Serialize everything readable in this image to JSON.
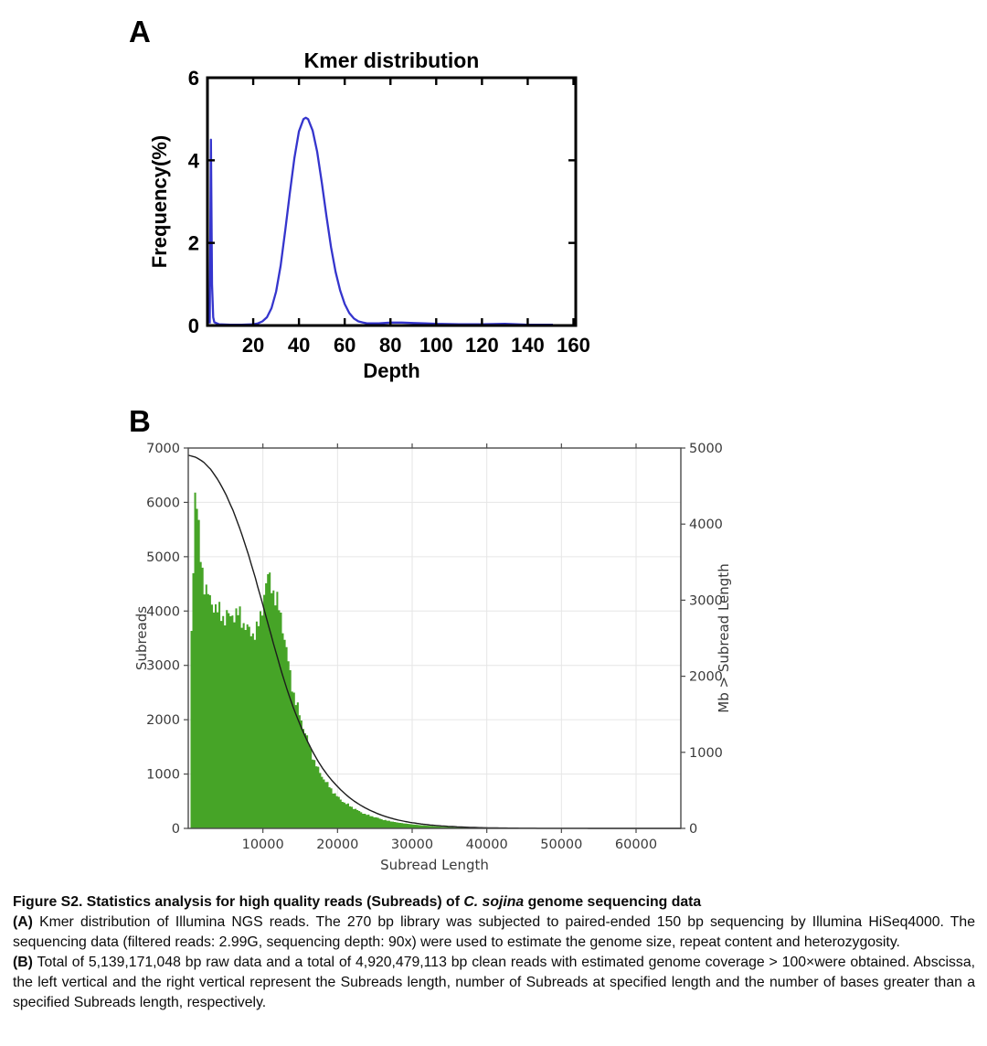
{
  "page": {
    "background": "#ffffff"
  },
  "panels": {
    "a_label": "A",
    "b_label": "B"
  },
  "chart_data": [
    {
      "id": "kmer",
      "type": "line",
      "panel": "A",
      "title": "Kmer distribution",
      "xlabel": "Depth",
      "ylabel": "Frequency(%)",
      "xlim": [
        0,
        161
      ],
      "ylim": [
        0,
        6
      ],
      "xticks": [
        20,
        40,
        60,
        80,
        100,
        120,
        140,
        160
      ],
      "yticks": [
        0,
        2,
        4,
        6
      ],
      "grid": false,
      "line_color": "#3535cd",
      "axis_color": "#000000",
      "points": [
        [
          1,
          0.05
        ],
        [
          1.5,
          4.5
        ],
        [
          2,
          1.0
        ],
        [
          2.5,
          0.2
        ],
        [
          3,
          0.08
        ],
        [
          5,
          0.03
        ],
        [
          10,
          0.02
        ],
        [
          15,
          0.02
        ],
        [
          20,
          0.03
        ],
        [
          22,
          0.05
        ],
        [
          24,
          0.1
        ],
        [
          26,
          0.2
        ],
        [
          28,
          0.42
        ],
        [
          30,
          0.82
        ],
        [
          32,
          1.45
        ],
        [
          34,
          2.3
        ],
        [
          36,
          3.2
        ],
        [
          38,
          4.05
        ],
        [
          40,
          4.7
        ],
        [
          42,
          5.0
        ],
        [
          43,
          5.03
        ],
        [
          44,
          5.0
        ],
        [
          46,
          4.72
        ],
        [
          48,
          4.2
        ],
        [
          50,
          3.45
        ],
        [
          52,
          2.65
        ],
        [
          54,
          1.9
        ],
        [
          56,
          1.3
        ],
        [
          58,
          0.85
        ],
        [
          60,
          0.52
        ],
        [
          62,
          0.3
        ],
        [
          64,
          0.17
        ],
        [
          66,
          0.1
        ],
        [
          68,
          0.07
        ],
        [
          70,
          0.05
        ],
        [
          75,
          0.05
        ],
        [
          80,
          0.07
        ],
        [
          85,
          0.07
        ],
        [
          90,
          0.06
        ],
        [
          95,
          0.05
        ],
        [
          100,
          0.04
        ],
        [
          110,
          0.03
        ],
        [
          120,
          0.03
        ],
        [
          130,
          0.04
        ],
        [
          140,
          0.02
        ],
        [
          150,
          0.02
        ],
        [
          151,
          0.02
        ]
      ]
    },
    {
      "id": "subreads",
      "type": "histogram+line",
      "panel": "B",
      "title": "",
      "xlabel": "Subread Length",
      "ylabel_left": "Subreads",
      "ylabel_right": "Mb > Subread Length",
      "xlim": [
        0,
        66000
      ],
      "ylim_left": [
        0,
        7000
      ],
      "ylim_right": [
        0,
        5000
      ],
      "xticks": [
        10000,
        20000,
        30000,
        40000,
        50000,
        60000
      ],
      "yticks_left": [
        0,
        1000,
        2000,
        3000,
        4000,
        5000,
        6000,
        7000
      ],
      "yticks_right": [
        0,
        1000,
        2000,
        3000,
        4000,
        5000
      ],
      "grid": true,
      "grid_color": "#e6e6e6",
      "bar_color": "#46a427",
      "line_color": "#1c1c1c",
      "axis_color": "#4a4a4a",
      "text_color": "#3a3a3a",
      "histogram": [
        [
          300,
          3350
        ],
        [
          500,
          3800
        ],
        [
          650,
          4600
        ],
        [
          800,
          5600
        ],
        [
          900,
          6100
        ],
        [
          1000,
          6320
        ],
        [
          1100,
          6050
        ],
        [
          1250,
          5800
        ],
        [
          1400,
          5500
        ],
        [
          1600,
          5200
        ],
        [
          1800,
          4950
        ],
        [
          2000,
          4750
        ],
        [
          2200,
          4550
        ],
        [
          2400,
          4400
        ],
        [
          2600,
          4300
        ],
        [
          2800,
          4220
        ],
        [
          3000,
          4150
        ],
        [
          3300,
          4080
        ],
        [
          3600,
          4020
        ],
        [
          4000,
          3960
        ],
        [
          4400,
          3990
        ],
        [
          4800,
          3920
        ],
        [
          5200,
          3960
        ],
        [
          5600,
          3900
        ],
        [
          6000,
          3930
        ],
        [
          6400,
          3870
        ],
        [
          6800,
          3900
        ],
        [
          7200,
          3830
        ],
        [
          7600,
          3780
        ],
        [
          8000,
          3700
        ],
        [
          8400,
          3640
        ],
        [
          8800,
          3600
        ],
        [
          9200,
          3620
        ],
        [
          9600,
          3750
        ],
        [
          10000,
          4100
        ],
        [
          10300,
          4450
        ],
        [
          10600,
          4630
        ],
        [
          10900,
          4650
        ],
        [
          11200,
          4540
        ],
        [
          11500,
          4380
        ],
        [
          11800,
          4220
        ],
        [
          12100,
          4050
        ],
        [
          12400,
          3870
        ],
        [
          12700,
          3650
        ],
        [
          13000,
          3400
        ],
        [
          13300,
          3150
        ],
        [
          13600,
          2900
        ],
        [
          14000,
          2620
        ],
        [
          14400,
          2380
        ],
        [
          14800,
          2160
        ],
        [
          15200,
          1960
        ],
        [
          15600,
          1780
        ],
        [
          16000,
          1600
        ],
        [
          16500,
          1400
        ],
        [
          17000,
          1230
        ],
        [
          17500,
          1080
        ],
        [
          18000,
          950
        ],
        [
          18500,
          840
        ],
        [
          19000,
          740
        ],
        [
          19500,
          660
        ],
        [
          20000,
          590
        ],
        [
          21000,
          470
        ],
        [
          22000,
          380
        ],
        [
          23000,
          310
        ],
        [
          24000,
          250
        ],
        [
          25000,
          205
        ],
        [
          26000,
          165
        ],
        [
          27000,
          135
        ],
        [
          28000,
          110
        ],
        [
          29000,
          90
        ],
        [
          30000,
          75
        ],
        [
          31000,
          60
        ],
        [
          32000,
          50
        ],
        [
          33000,
          40
        ],
        [
          34000,
          32
        ],
        [
          35000,
          25
        ],
        [
          36000,
          20
        ],
        [
          38000,
          13
        ],
        [
          40000,
          8
        ],
        [
          42000,
          5
        ],
        [
          45000,
          3
        ],
        [
          48000,
          2
        ],
        [
          52000,
          1
        ],
        [
          56000,
          1
        ],
        [
          60000,
          1
        ],
        [
          64000,
          0
        ]
      ],
      "cumulative_mb": [
        [
          0,
          4905
        ],
        [
          1000,
          4880
        ],
        [
          2000,
          4820
        ],
        [
          3000,
          4720
        ],
        [
          4000,
          4580
        ],
        [
          5000,
          4400
        ],
        [
          6000,
          4180
        ],
        [
          7000,
          3920
        ],
        [
          8000,
          3620
        ],
        [
          9000,
          3290
        ],
        [
          10000,
          2940
        ],
        [
          11000,
          2580
        ],
        [
          12000,
          2230
        ],
        [
          13000,
          1900
        ],
        [
          14000,
          1610
        ],
        [
          15000,
          1360
        ],
        [
          16000,
          1140
        ],
        [
          17000,
          950
        ],
        [
          18000,
          790
        ],
        [
          19000,
          660
        ],
        [
          20000,
          550
        ],
        [
          21000,
          455
        ],
        [
          22000,
          375
        ],
        [
          23000,
          310
        ],
        [
          24000,
          255
        ],
        [
          25000,
          210
        ],
        [
          26000,
          170
        ],
        [
          27000,
          140
        ],
        [
          28000,
          113
        ],
        [
          29000,
          92
        ],
        [
          30000,
          75
        ],
        [
          32000,
          49
        ],
        [
          34000,
          32
        ],
        [
          36000,
          21
        ],
        [
          38000,
          13
        ],
        [
          40000,
          8
        ],
        [
          43000,
          4
        ],
        [
          46000,
          2
        ],
        [
          50000,
          1
        ],
        [
          55000,
          0.5
        ],
        [
          60000,
          0.2
        ],
        [
          66000,
          0.1
        ]
      ]
    }
  ],
  "caption": {
    "fig_label": "Figure S2.",
    "title_pre": "  Statistics analysis for high quality reads (Subreads) of ",
    "species": "C. sojina",
    "title_post": " genome sequencing data",
    "a_label": "(A)",
    "a_text": " Kmer distribution of Illumina NGS reads. The 270 bp library was subjected to paired-ended 150 bp sequencing by Illumina HiSeq4000. The sequencing data (filtered reads: 2.99G, sequencing depth: 90x) were used to estimate the genome size, repeat content and heterozygosity.",
    "b_label": "(B)",
    "b_text": " Total of 5,139,171,048 bp raw data and a total of 4,920,479,113 bp clean reads with estimated genome coverage > 100×were obtained. Abscissa, the left vertical and the right vertical represent the Subreads length, number of Subreads at specified length and the number of bases greater than a specified Subreads length, respectively."
  }
}
